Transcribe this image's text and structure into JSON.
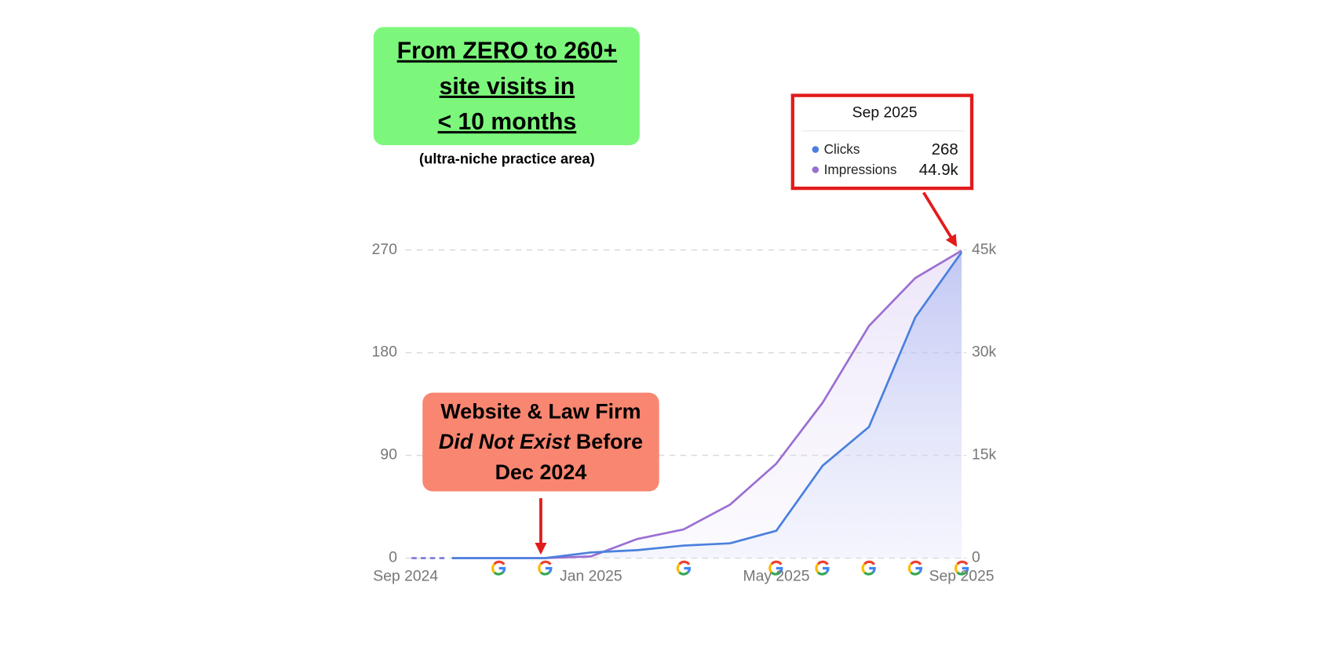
{
  "chart_data": {
    "type": "line",
    "annotations": {
      "headline": [
        "From ZERO to 260+",
        "site visits in",
        "< 10 months"
      ],
      "note": "(ultra-niche practice area)",
      "callout": [
        [
          {
            "text": "Website & Law Firm"
          }
        ],
        [
          {
            "text": "Did Not Exist",
            "italic": true
          },
          {
            "text": " Before"
          }
        ],
        [
          {
            "text": "Dec 2024"
          }
        ]
      ]
    },
    "tooltip": {
      "title": "Sep 2025",
      "clicks": 268,
      "impressions": {
        "value": 44900,
        "label": "44.9k"
      }
    },
    "categories": [
      "Sep 2024",
      null,
      null,
      null,
      "Jan 2025",
      null,
      null,
      null,
      "May 2025",
      null,
      null,
      null,
      "Sep 2025"
    ],
    "series": [
      {
        "name": "Clicks",
        "color": "#4a80dd",
        "values": [
          null,
          0,
          0,
          0,
          5,
          7,
          11,
          13,
          24,
          81,
          115,
          211,
          268
        ]
      },
      {
        "name": "Impressions",
        "color": "#9b6fd2",
        "axis": "y2",
        "values": [
          null,
          0,
          0,
          0,
          250,
          2800,
          4200,
          7800,
          13800,
          22700,
          33900,
          40900,
          44900
        ]
      }
    ],
    "ylim": [
      0,
      270
    ],
    "yticks": [
      0,
      90,
      180,
      270
    ],
    "y2lim": [
      0,
      45000
    ],
    "y2ticks": [
      0,
      {
        "value": 15000,
        "label": "15k"
      },
      {
        "value": 30000,
        "label": "30k"
      },
      {
        "value": 45000,
        "label": "45k"
      }
    ],
    "grid": true
  }
}
